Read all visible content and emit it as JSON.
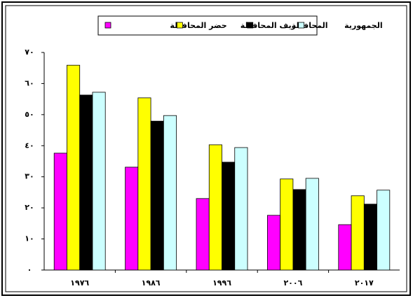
{
  "chart_data": {
    "type": "bar",
    "categories": [
      "١٩٧٦",
      "١٩٨٦",
      "١٩٩٦",
      "٢٠٠٦",
      "٢٠١٧"
    ],
    "series": [
      {
        "name": "حضر المحافظة",
        "color": "#ff00ff",
        "values": [
          37.6,
          33.1,
          23.0,
          17.6,
          14.6
        ]
      },
      {
        "name": "ريف المحافظة",
        "color": "#ffff00",
        "values": [
          65.9,
          55.4,
          40.3,
          29.3,
          23.9
        ]
      },
      {
        "name": "المحافظة",
        "color": "#000000",
        "values": [
          56.3,
          47.9,
          34.7,
          25.9,
          21.2
        ]
      },
      {
        "name": "الجمهورية",
        "color": "#ccffff",
        "values": [
          57.2,
          49.7,
          39.4,
          29.5,
          25.7
        ]
      }
    ],
    "ylim": [
      0,
      70
    ],
    "yticks": [
      {
        "value": 0,
        "label": "٠"
      },
      {
        "value": 10,
        "label": "١٠"
      },
      {
        "value": 20,
        "label": "٢٠"
      },
      {
        "value": 30,
        "label": "٣٠"
      },
      {
        "value": 40,
        "label": "٤٠"
      },
      {
        "value": 50,
        "label": "٥٠"
      },
      {
        "value": 60,
        "label": "٦٠"
      },
      {
        "value": 70,
        "label": "٧٠"
      }
    ],
    "grid": false
  }
}
